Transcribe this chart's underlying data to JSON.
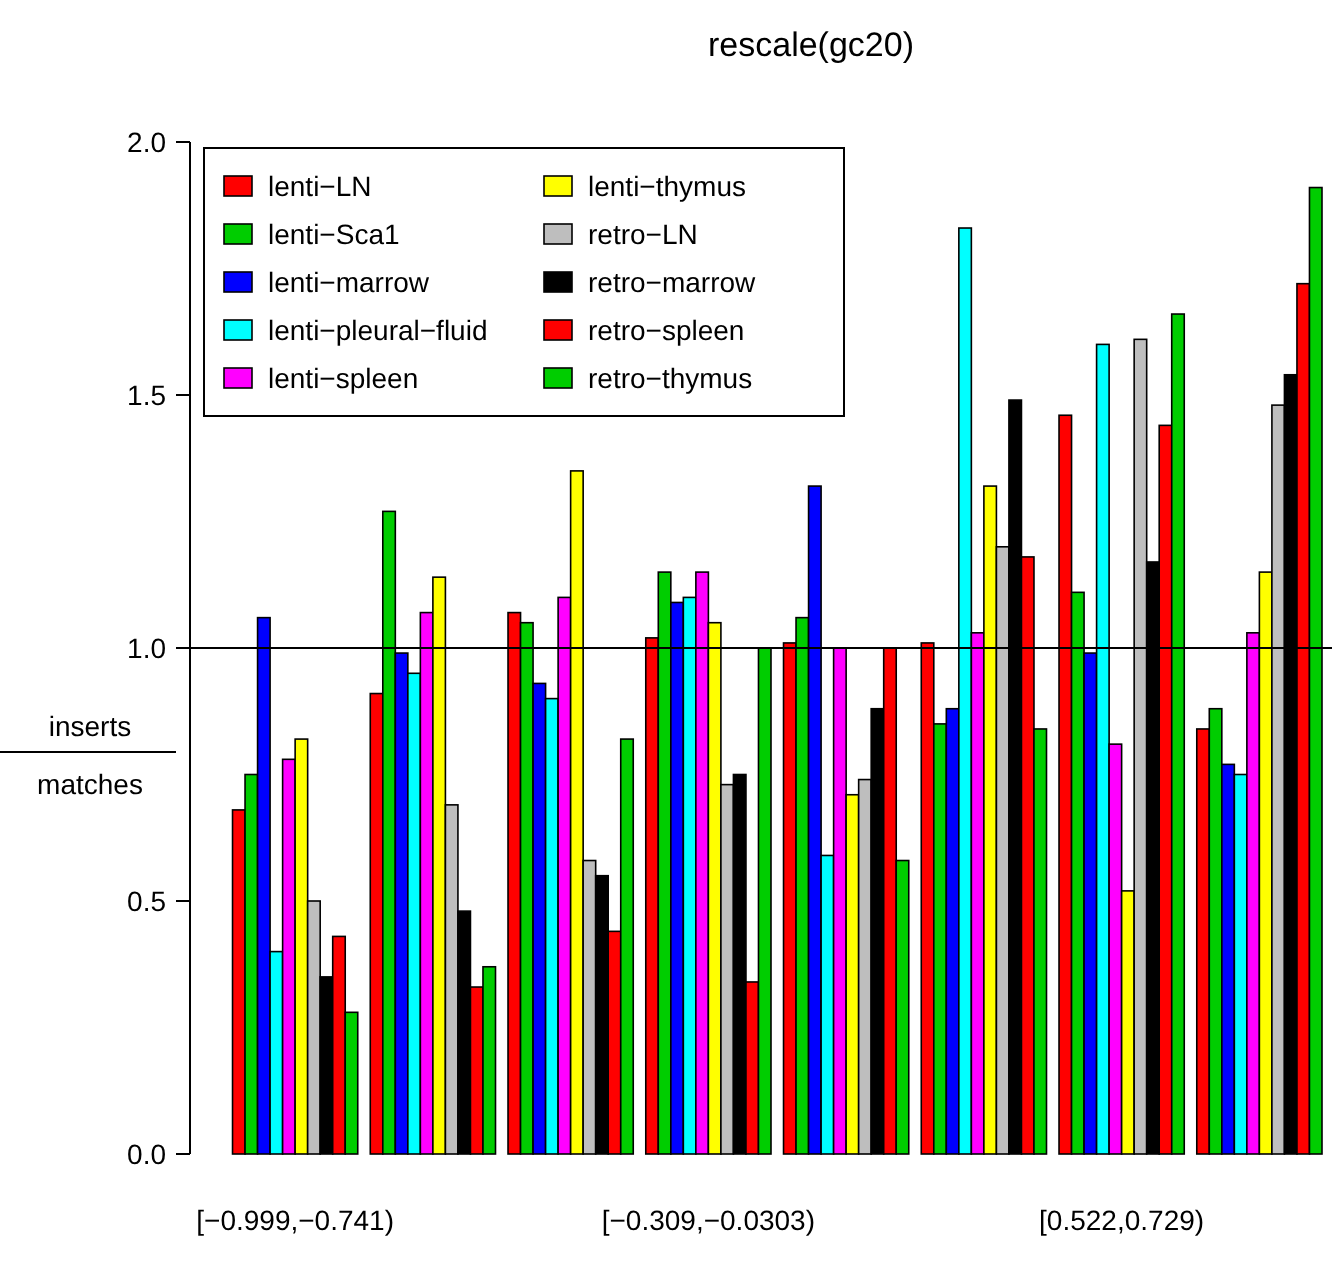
{
  "chart_data": {
    "type": "bar",
    "title": "rescale(gc20)",
    "ylabel": "inserts\nmatches",
    "categories": [
      "[−0.999,−0.741)",
      null,
      null,
      "[−0.309,−0.0303)",
      null,
      null,
      "[0.522,0.729)",
      null
    ],
    "ylim": [
      0,
      2
    ],
    "yticks": [
      {
        "value": 0,
        "label": "0.0"
      },
      {
        "value": 0.5,
        "label": "0.5"
      },
      {
        "value": 1,
        "label": "1.0"
      },
      {
        "value": 1.5,
        "label": "1.5"
      },
      {
        "value": 2,
        "label": "2.0"
      }
    ],
    "grid": false,
    "legend": "top left",
    "ref_lines": [
      {
        "axis": "y",
        "value": 1,
        "color": "#000000"
      }
    ],
    "series": [
      {
        "name": "lenti−LN",
        "color": "#ff0000",
        "values": [
          0.68,
          0.91,
          1.07,
          1.02,
          1.01,
          1.01,
          1.46,
          0.84
        ]
      },
      {
        "name": "lenti−Sca1",
        "color": "#00cd00",
        "values": [
          0.75,
          1.27,
          1.05,
          1.15,
          1.06,
          0.85,
          1.11,
          0.88
        ]
      },
      {
        "name": "lenti−marrow",
        "color": "#0000ff",
        "values": [
          1.06,
          0.99,
          0.93,
          1.09,
          1.32,
          0.88,
          0.99,
          0.77
        ]
      },
      {
        "name": "lenti−pleural−fluid",
        "color": "#00ffff",
        "values": [
          0.4,
          0.95,
          0.9,
          1.1,
          0.59,
          1.83,
          1.6,
          0.75
        ]
      },
      {
        "name": "lenti−spleen",
        "color": "#ff00ff",
        "values": [
          0.78,
          1.07,
          1.1,
          1.15,
          1.0,
          1.03,
          0.81,
          1.03
        ]
      },
      {
        "name": "lenti−thymus",
        "color": "#ffff00",
        "values": [
          0.82,
          1.14,
          1.35,
          1.05,
          0.71,
          1.32,
          0.52,
          1.15
        ]
      },
      {
        "name": "retro−LN",
        "color": "#bebebe",
        "values": [
          0.5,
          0.69,
          0.58,
          0.73,
          0.74,
          1.2,
          1.61,
          1.48
        ]
      },
      {
        "name": "retro−marrow",
        "color": "#000000",
        "values": [
          0.35,
          0.48,
          0.55,
          0.75,
          0.88,
          1.49,
          1.17,
          1.54
        ]
      },
      {
        "name": "retro−spleen",
        "color": "#ff0000",
        "values": [
          0.43,
          0.33,
          0.44,
          0.34,
          1.0,
          1.18,
          1.44,
          1.72
        ]
      },
      {
        "name": "retro−thymus",
        "color": "#00cd00",
        "values": [
          0.28,
          0.37,
          0.82,
          1.0,
          0.58,
          0.84,
          1.66,
          1.91
        ]
      }
    ]
  }
}
